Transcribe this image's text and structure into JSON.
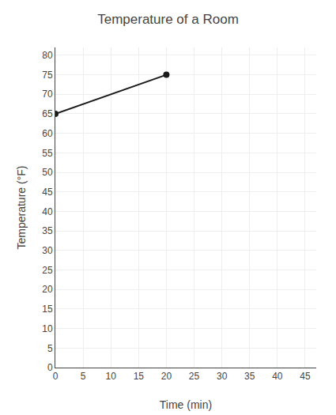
{
  "chart_data": {
    "type": "line",
    "title": "Temperature of a Room",
    "xlabel": "Time (min)",
    "ylabel": "Temperature (°F)",
    "x": [
      0,
      20
    ],
    "series": [
      {
        "color": "#1a1a1a",
        "values": [
          65,
          75
        ]
      }
    ],
    "marker": "circle",
    "line_style": "solid",
    "xlim": [
      0,
      47
    ],
    "ylim": [
      0,
      82
    ],
    "xticks": [
      0,
      5,
      10,
      15,
      20,
      25,
      30,
      35,
      40,
      45
    ],
    "yticks": [
      0,
      5,
      10,
      15,
      20,
      25,
      30,
      35,
      40,
      45,
      50,
      55,
      60,
      65,
      70,
      75,
      80
    ],
    "grid": true
  }
}
